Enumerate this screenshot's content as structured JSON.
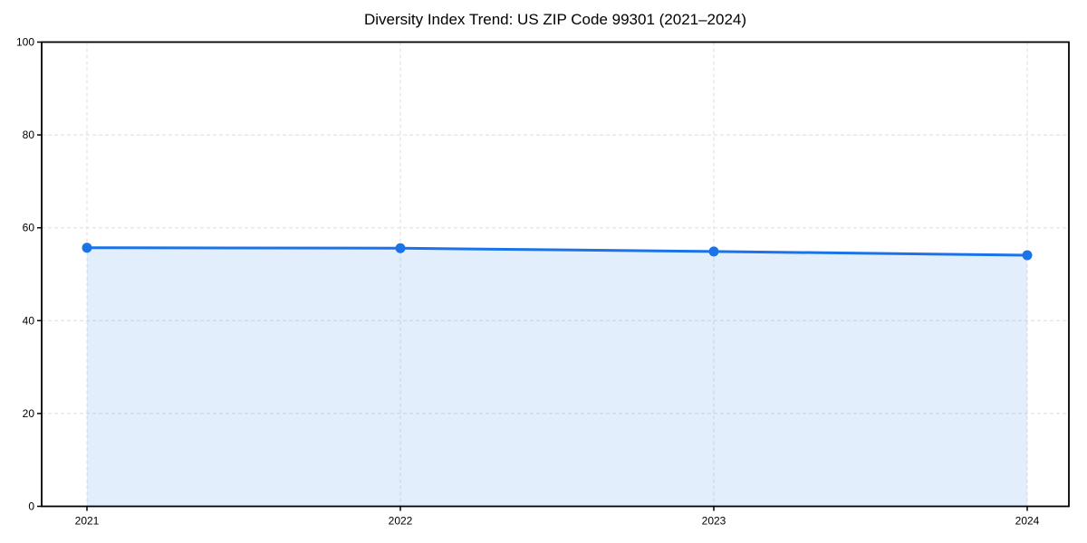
{
  "page": {
    "background_color": "#ffffff"
  },
  "chart_data": {
    "type": "line",
    "title": "Diversity Index Trend: US ZIP Code 99301 (2021–2024)",
    "x": [
      "2021",
      "2022",
      "2023",
      "2024"
    ],
    "values": [
      55.7,
      55.6,
      54.9,
      54.1
    ],
    "xlabel": "",
    "ylabel": "",
    "ylim": [
      0,
      100
    ],
    "yticks": [
      0,
      20,
      40,
      60,
      80,
      100
    ],
    "grid": "dashed",
    "legend_position": "none",
    "area_fill_to_zero": true,
    "marker": "circle",
    "colors": {
      "line": "#1a73e8",
      "marker": "#1a73e8",
      "fill": "#1a73e8",
      "fill_opacity": 0.12,
      "grid": "#dedede",
      "axis": "#000000",
      "tick_text": "#000000",
      "title_text": "#000000"
    }
  }
}
